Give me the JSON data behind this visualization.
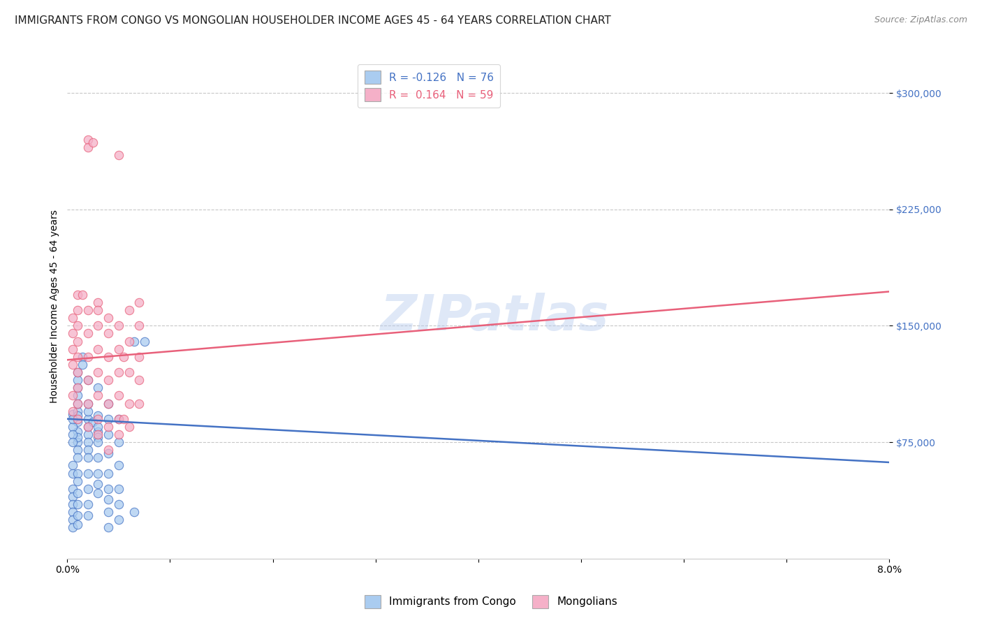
{
  "title": "IMMIGRANTS FROM CONGO VS MONGOLIAN HOUSEHOLDER INCOME AGES 45 - 64 YEARS CORRELATION CHART",
  "source": "Source: ZipAtlas.com",
  "ylabel": "Householder Income Ages 45 - 64 years",
  "xlim": [
    0.0,
    0.08
  ],
  "ylim": [
    0,
    325000
  ],
  "xticks": [
    0.0,
    0.01,
    0.02,
    0.03,
    0.04,
    0.05,
    0.06,
    0.07,
    0.08
  ],
  "xticklabels": [
    "0.0%",
    "",
    "",
    "",
    "",
    "",
    "",
    "",
    "8.0%"
  ],
  "yticks": [
    75000,
    150000,
    225000,
    300000
  ],
  "yticklabels": [
    "$75,000",
    "$150,000",
    "$225,000",
    "$300,000"
  ],
  "watermark": "ZIPatlas",
  "legend1_R": "-0.126",
  "legend1_N": "76",
  "legend2_R": "0.164",
  "legend2_N": "59",
  "congo_color": "#aaccf0",
  "mongolian_color": "#f5b0c8",
  "congo_line_color": "#4472c4",
  "mongolian_line_color": "#e8607a",
  "background_color": "#ffffff",
  "grid_color": "#c8c8c8",
  "title_fontsize": 11,
  "axis_label_fontsize": 10,
  "tick_fontsize": 10,
  "legend_fontsize": 11,
  "watermark_fontsize": 52,
  "watermark_color": "#b8ccee",
  "watermark_alpha": 0.45,
  "congo_line_y0": 90000,
  "congo_line_y1": 62000,
  "mongolian_line_y0": 128000,
  "mongolian_line_y1": 172000,
  "congo_points": [
    [
      0.0005,
      93000
    ],
    [
      0.001,
      88000
    ],
    [
      0.001,
      82000
    ],
    [
      0.001,
      75000
    ],
    [
      0.001,
      95000
    ],
    [
      0.001,
      100000
    ],
    [
      0.001,
      78000
    ],
    [
      0.001,
      70000
    ],
    [
      0.001,
      65000
    ],
    [
      0.001,
      92000
    ],
    [
      0.0005,
      85000
    ],
    [
      0.0005,
      80000
    ],
    [
      0.0005,
      90000
    ],
    [
      0.0005,
      75000
    ],
    [
      0.001,
      110000
    ],
    [
      0.001,
      115000
    ],
    [
      0.001,
      105000
    ],
    [
      0.001,
      120000
    ],
    [
      0.0015,
      130000
    ],
    [
      0.0015,
      125000
    ],
    [
      0.002,
      115000
    ],
    [
      0.002,
      90000
    ],
    [
      0.002,
      85000
    ],
    [
      0.002,
      80000
    ],
    [
      0.002,
      95000
    ],
    [
      0.002,
      100000
    ],
    [
      0.002,
      75000
    ],
    [
      0.002,
      70000
    ],
    [
      0.002,
      65000
    ],
    [
      0.0025,
      88000
    ],
    [
      0.003,
      82000
    ],
    [
      0.003,
      78000
    ],
    [
      0.003,
      110000
    ],
    [
      0.003,
      92000
    ],
    [
      0.003,
      85000
    ],
    [
      0.003,
      75000
    ],
    [
      0.003,
      65000
    ],
    [
      0.003,
      55000
    ],
    [
      0.003,
      48000
    ],
    [
      0.003,
      42000
    ],
    [
      0.004,
      100000
    ],
    [
      0.004,
      90000
    ],
    [
      0.004,
      80000
    ],
    [
      0.004,
      68000
    ],
    [
      0.004,
      55000
    ],
    [
      0.004,
      45000
    ],
    [
      0.004,
      38000
    ],
    [
      0.004,
      30000
    ],
    [
      0.005,
      90000
    ],
    [
      0.005,
      75000
    ],
    [
      0.005,
      60000
    ],
    [
      0.005,
      45000
    ],
    [
      0.005,
      35000
    ],
    [
      0.005,
      25000
    ],
    [
      0.0005,
      60000
    ],
    [
      0.0005,
      55000
    ],
    [
      0.0005,
      45000
    ],
    [
      0.0005,
      40000
    ],
    [
      0.0005,
      35000
    ],
    [
      0.0005,
      30000
    ],
    [
      0.0005,
      25000
    ],
    [
      0.0005,
      20000
    ],
    [
      0.001,
      55000
    ],
    [
      0.001,
      50000
    ],
    [
      0.001,
      42000
    ],
    [
      0.001,
      35000
    ],
    [
      0.001,
      28000
    ],
    [
      0.001,
      22000
    ],
    [
      0.002,
      55000
    ],
    [
      0.002,
      45000
    ],
    [
      0.002,
      35000
    ],
    [
      0.002,
      28000
    ],
    [
      0.0075,
      140000
    ],
    [
      0.0065,
      140000
    ],
    [
      0.0065,
      30000
    ],
    [
      0.004,
      20000
    ]
  ],
  "mongolian_points": [
    [
      0.0005,
      145000
    ],
    [
      0.0005,
      135000
    ],
    [
      0.0005,
      125000
    ],
    [
      0.001,
      140000
    ],
    [
      0.001,
      130000
    ],
    [
      0.001,
      120000
    ],
    [
      0.001,
      160000
    ],
    [
      0.001,
      150000
    ],
    [
      0.001,
      170000
    ],
    [
      0.001,
      110000
    ],
    [
      0.001,
      100000
    ],
    [
      0.001,
      90000
    ],
    [
      0.0005,
      155000
    ],
    [
      0.0005,
      105000
    ],
    [
      0.0005,
      95000
    ],
    [
      0.002,
      270000
    ],
    [
      0.002,
      265000
    ],
    [
      0.0015,
      170000
    ],
    [
      0.002,
      160000
    ],
    [
      0.002,
      145000
    ],
    [
      0.002,
      130000
    ],
    [
      0.002,
      115000
    ],
    [
      0.002,
      100000
    ],
    [
      0.002,
      85000
    ],
    [
      0.0025,
      268000
    ],
    [
      0.003,
      165000
    ],
    [
      0.003,
      150000
    ],
    [
      0.003,
      135000
    ],
    [
      0.003,
      120000
    ],
    [
      0.003,
      105000
    ],
    [
      0.003,
      90000
    ],
    [
      0.003,
      80000
    ],
    [
      0.003,
      160000
    ],
    [
      0.004,
      145000
    ],
    [
      0.004,
      130000
    ],
    [
      0.004,
      115000
    ],
    [
      0.004,
      100000
    ],
    [
      0.004,
      85000
    ],
    [
      0.004,
      70000
    ],
    [
      0.005,
      150000
    ],
    [
      0.005,
      135000
    ],
    [
      0.005,
      120000
    ],
    [
      0.005,
      105000
    ],
    [
      0.005,
      90000
    ],
    [
      0.005,
      260000
    ],
    [
      0.005,
      80000
    ],
    [
      0.006,
      160000
    ],
    [
      0.006,
      140000
    ],
    [
      0.006,
      120000
    ],
    [
      0.006,
      100000
    ],
    [
      0.006,
      85000
    ],
    [
      0.0055,
      90000
    ],
    [
      0.007,
      165000
    ],
    [
      0.007,
      150000
    ],
    [
      0.007,
      130000
    ],
    [
      0.007,
      115000
    ],
    [
      0.007,
      100000
    ],
    [
      0.0055,
      130000
    ],
    [
      0.004,
      155000
    ]
  ]
}
